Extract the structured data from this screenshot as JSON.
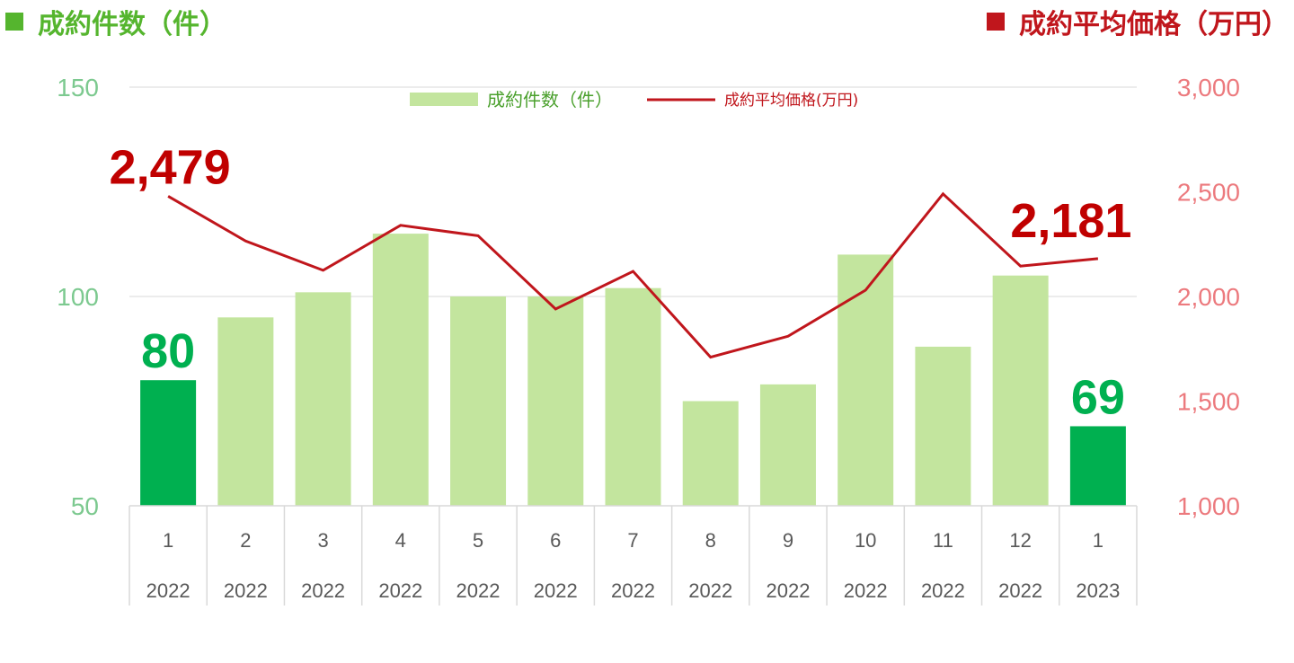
{
  "header": {
    "left_title": "成約件数（件）",
    "right_title": "成約平均価格（万円）"
  },
  "chart_data": {
    "type": "bar",
    "categories": [
      {
        "month": "1",
        "year": "2022"
      },
      {
        "month": "2",
        "year": "2022"
      },
      {
        "month": "3",
        "year": "2022"
      },
      {
        "month": "4",
        "year": "2022"
      },
      {
        "month": "5",
        "year": "2022"
      },
      {
        "month": "6",
        "year": "2022"
      },
      {
        "month": "7",
        "year": "2022"
      },
      {
        "month": "8",
        "year": "2022"
      },
      {
        "month": "9",
        "year": "2022"
      },
      {
        "month": "10",
        "year": "2022"
      },
      {
        "month": "11",
        "year": "2022"
      },
      {
        "month": "12",
        "year": "2022"
      },
      {
        "month": "1",
        "year": "2023"
      }
    ],
    "series": [
      {
        "name": "成約件数（件）",
        "type": "bar",
        "axis": "left",
        "values": [
          80,
          95,
          101,
          115,
          100,
          100,
          102,
          75,
          79,
          110,
          88,
          105,
          69
        ]
      },
      {
        "name": "成約平均価格(万円)",
        "type": "line",
        "axis": "right",
        "values": [
          2479,
          2265,
          2125,
          2340,
          2290,
          1940,
          2120,
          1710,
          1810,
          2030,
          2490,
          2145,
          2181
        ]
      }
    ],
    "y_left": {
      "range": [
        50,
        150
      ],
      "ticks": [
        50,
        100,
        150
      ],
      "tick_labels": [
        "50",
        "100",
        "150"
      ]
    },
    "y_right": {
      "range": [
        1000,
        3000
      ],
      "ticks": [
        1000,
        1500,
        2000,
        2500,
        3000
      ],
      "tick_labels": [
        "1,000",
        "1,500",
        "2,000",
        "2,500",
        "3,000"
      ]
    },
    "highlighted_bars": [
      0,
      12
    ],
    "annotations": [
      {
        "text": "80",
        "series": 0,
        "index": 0
      },
      {
        "text": "69",
        "series": 0,
        "index": 12
      },
      {
        "text": "2,479",
        "series": 1,
        "index": 0
      },
      {
        "text": "2,181",
        "series": 1,
        "index": 12
      }
    ],
    "legend_position": "top-center",
    "gridlines": "horizontal",
    "colors": {
      "bar": "#c3e59e",
      "bar_highlight": "#00b050",
      "line": "#c0161c",
      "left_axis_text": "#7cc98f",
      "right_axis_text": "#ec7a7e",
      "grid": "#d9d9d9"
    }
  }
}
